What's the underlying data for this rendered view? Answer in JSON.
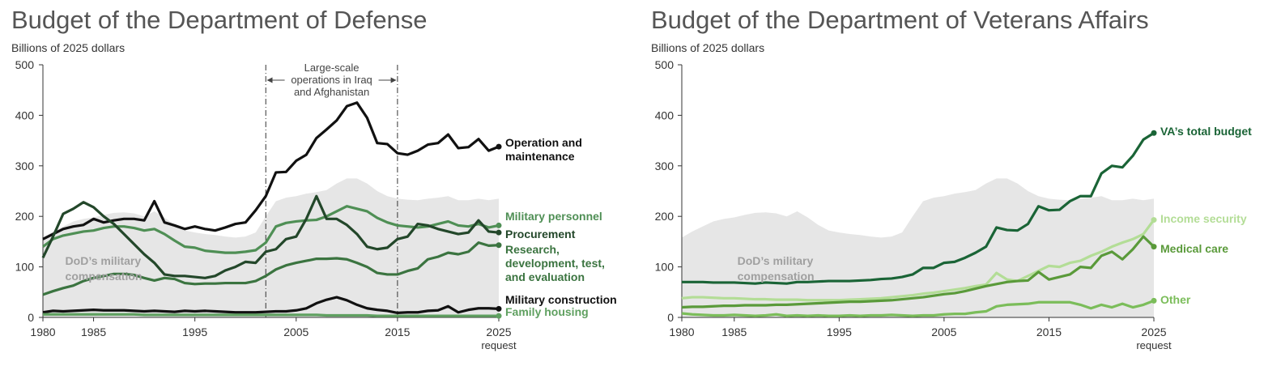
{
  "chart_data": [
    {
      "type": "line",
      "title": "Budget of the Department of Defense",
      "subtitle": "Billions of 2025 dollars",
      "x": [
        1980,
        1981,
        1982,
        1983,
        1984,
        1985,
        1986,
        1987,
        1988,
        1989,
        1990,
        1991,
        1992,
        1993,
        1994,
        1995,
        1996,
        1997,
        1998,
        1999,
        2000,
        2001,
        2002,
        2003,
        2004,
        2005,
        2006,
        2007,
        2008,
        2009,
        2010,
        2011,
        2012,
        2013,
        2014,
        2015,
        2016,
        2017,
        2018,
        2019,
        2020,
        2021,
        2022,
        2023,
        2024,
        2025
      ],
      "xlim": [
        1980,
        2025
      ],
      "xticks": [
        1980,
        1985,
        1995,
        2005,
        2015,
        2025
      ],
      "x_note": "request",
      "ylim": [
        0,
        500
      ],
      "yticks": [
        0,
        100,
        200,
        300,
        400,
        500
      ],
      "area": {
        "name": "DoD’s military compensation",
        "color": "#e6e6e6",
        "values": [
          158,
          170,
          180,
          190,
          195,
          198,
          203,
          207,
          208,
          206,
          200,
          210,
          198,
          183,
          172,
          168,
          165,
          163,
          160,
          158,
          160,
          168,
          200,
          230,
          237,
          240,
          245,
          248,
          252,
          265,
          275,
          275,
          265,
          250,
          240,
          235,
          233,
          232,
          235,
          237,
          240,
          232,
          232,
          235,
          232,
          235
        ]
      },
      "period": {
        "x": [
          2002,
          2015
        ],
        "label": "Large-scale operations in Iraq and Afghanistan"
      },
      "series": [
        {
          "name": "Operation and maintenance",
          "color": "#111111",
          "values": [
            155,
            165,
            175,
            180,
            183,
            195,
            188,
            192,
            195,
            195,
            192,
            230,
            188,
            182,
            175,
            180,
            175,
            172,
            178,
            185,
            188,
            212,
            240,
            287,
            288,
            310,
            322,
            355,
            372,
            390,
            418,
            425,
            395,
            345,
            343,
            325,
            322,
            330,
            342,
            345,
            362,
            335,
            337,
            353,
            330,
            338
          ]
        },
        {
          "name": "Military personnel",
          "color": "#4f8f55",
          "values": [
            140,
            155,
            162,
            166,
            170,
            172,
            177,
            180,
            180,
            177,
            172,
            175,
            165,
            152,
            140,
            138,
            132,
            130,
            128,
            128,
            130,
            133,
            148,
            180,
            187,
            190,
            192,
            193,
            200,
            210,
            220,
            215,
            210,
            197,
            188,
            182,
            180,
            178,
            180,
            185,
            190,
            182,
            180,
            185,
            178,
            182
          ]
        },
        {
          "name": "Procurement",
          "color": "#23472a",
          "values": [
            118,
            160,
            205,
            215,
            228,
            218,
            200,
            185,
            165,
            145,
            125,
            108,
            85,
            82,
            82,
            80,
            78,
            82,
            93,
            100,
            110,
            108,
            130,
            135,
            155,
            160,
            195,
            240,
            195,
            195,
            183,
            165,
            140,
            135,
            138,
            155,
            160,
            185,
            182,
            175,
            170,
            165,
            168,
            192,
            170,
            168
          ]
        },
        {
          "name": "Research, development, test, and evaluation",
          "color": "#3b7440",
          "values": [
            45,
            52,
            58,
            63,
            72,
            78,
            82,
            86,
            86,
            84,
            78,
            73,
            78,
            76,
            68,
            66,
            67,
            67,
            68,
            68,
            68,
            72,
            82,
            95,
            103,
            108,
            112,
            116,
            116,
            117,
            115,
            108,
            100,
            88,
            85,
            85,
            92,
            97,
            115,
            120,
            128,
            125,
            130,
            148,
            142,
            143
          ]
        },
        {
          "name": "Military construction",
          "color": "#111111",
          "values": [
            10,
            13,
            12,
            13,
            14,
            15,
            14,
            14,
            14,
            13,
            12,
            13,
            12,
            11,
            13,
            12,
            13,
            12,
            11,
            10,
            10,
            10,
            11,
            12,
            12,
            14,
            18,
            28,
            35,
            40,
            34,
            25,
            18,
            15,
            13,
            9,
            10,
            10,
            13,
            14,
            22,
            10,
            15,
            18,
            18,
            17
          ]
        },
        {
          "name": "Family housing",
          "color": "#5fa060",
          "values": [
            6,
            6,
            6,
            6,
            6,
            6,
            6,
            6,
            6,
            6,
            5,
            5,
            5,
            5,
            5,
            5,
            5,
            5,
            5,
            5,
            5,
            5,
            5,
            5,
            5,
            5,
            5,
            5,
            4,
            4,
            4,
            4,
            4,
            3,
            3,
            3,
            3,
            3,
            3,
            3,
            3,
            3,
            3,
            3,
            3,
            3
          ]
        }
      ]
    },
    {
      "type": "line",
      "title": "Budget of the Department of Veterans Affairs",
      "subtitle": "Billions of 2025 dollars",
      "x": [
        1980,
        1981,
        1982,
        1983,
        1984,
        1985,
        1986,
        1987,
        1988,
        1989,
        1990,
        1991,
        1992,
        1993,
        1994,
        1995,
        1996,
        1997,
        1998,
        1999,
        2000,
        2001,
        2002,
        2003,
        2004,
        2005,
        2006,
        2007,
        2008,
        2009,
        2010,
        2011,
        2012,
        2013,
        2014,
        2015,
        2016,
        2017,
        2018,
        2019,
        2020,
        2021,
        2022,
        2023,
        2024,
        2025
      ],
      "xlim": [
        1980,
        2025
      ],
      "xticks": [
        1980,
        1985,
        1995,
        2005,
        2015,
        2025
      ],
      "x_note": "request",
      "ylim": [
        0,
        500
      ],
      "yticks": [
        0,
        100,
        200,
        300,
        400,
        500
      ],
      "area": {
        "name": "DoD’s military compensation",
        "color": "#e6e6e6",
        "values": [
          158,
          170,
          180,
          190,
          195,
          198,
          203,
          207,
          208,
          206,
          200,
          210,
          198,
          183,
          172,
          168,
          165,
          163,
          160,
          158,
          160,
          168,
          200,
          230,
          237,
          240,
          245,
          248,
          252,
          265,
          275,
          275,
          265,
          250,
          240,
          235,
          233,
          232,
          235,
          237,
          240,
          232,
          232,
          235,
          232,
          235
        ]
      },
      "series": [
        {
          "name": "VA’s total budget",
          "color": "#1a6436",
          "values": [
            70,
            70,
            70,
            69,
            69,
            69,
            68,
            67,
            69,
            68,
            67,
            70,
            70,
            71,
            72,
            72,
            72,
            73,
            74,
            76,
            77,
            80,
            85,
            98,
            98,
            108,
            110,
            118,
            128,
            140,
            178,
            173,
            172,
            185,
            220,
            212,
            213,
            230,
            240,
            240,
            285,
            300,
            297,
            320,
            352,
            365
          ]
        },
        {
          "name": "Income security",
          "color": "#b3dd96",
          "values": [
            38,
            40,
            40,
            39,
            38,
            38,
            37,
            36,
            36,
            35,
            35,
            35,
            34,
            34,
            34,
            34,
            35,
            36,
            37,
            38,
            40,
            42,
            44,
            47,
            49,
            52,
            55,
            58,
            62,
            65,
            88,
            75,
            72,
            82,
            92,
            102,
            100,
            108,
            112,
            122,
            130,
            140,
            148,
            155,
            165,
            193
          ]
        },
        {
          "name": "Medical care",
          "color": "#5a9a3a",
          "values": [
            20,
            21,
            21,
            22,
            23,
            23,
            24,
            24,
            24,
            25,
            25,
            26,
            27,
            28,
            29,
            30,
            31,
            31,
            32,
            33,
            34,
            36,
            38,
            40,
            43,
            46,
            48,
            52,
            57,
            62,
            66,
            70,
            72,
            73,
            90,
            75,
            80,
            85,
            100,
            98,
            122,
            130,
            115,
            135,
            160,
            140
          ]
        },
        {
          "name": "Other",
          "color": "#7bbd5a",
          "values": [
            8,
            6,
            5,
            4,
            4,
            5,
            4,
            3,
            4,
            6,
            3,
            4,
            3,
            4,
            3,
            3,
            4,
            3,
            4,
            4,
            5,
            4,
            3,
            4,
            4,
            6,
            7,
            7,
            10,
            12,
            22,
            25,
            26,
            27,
            30,
            30,
            30,
            30,
            25,
            18,
            25,
            20,
            27,
            20,
            25,
            33
          ]
        }
      ]
    }
  ]
}
